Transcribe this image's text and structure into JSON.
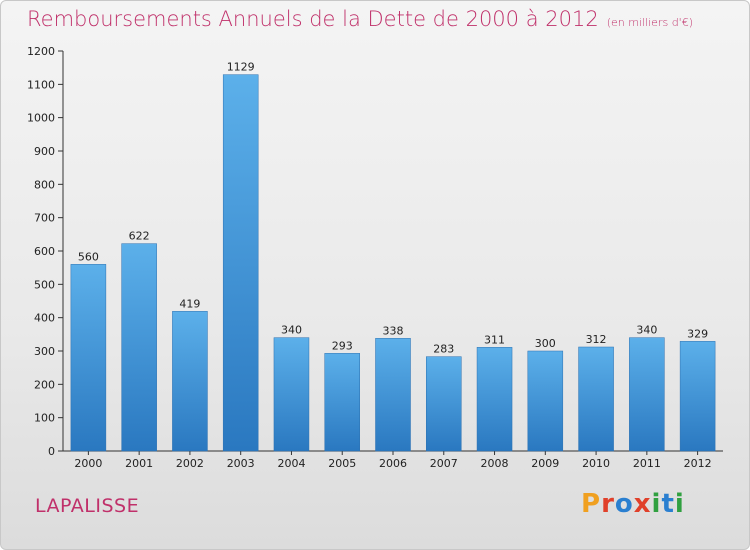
{
  "header": {
    "title": "Remboursements Annuels de la Dette de 2000 à 2012",
    "unit": "(en milliers d'€)"
  },
  "footer": {
    "commune": "LAPALISSE",
    "logo_text": "Proxiti",
    "logo_colors": [
      "#f0a020",
      "#e0402a",
      "#2a7fd0",
      "#e0402a",
      "#30a040",
      "#2a7fd0",
      "#30a040"
    ]
  },
  "chart_data": {
    "type": "bar",
    "categories": [
      "2000",
      "2001",
      "2002",
      "2003",
      "2004",
      "2005",
      "2006",
      "2007",
      "2008",
      "2009",
      "2010",
      "2011",
      "2012"
    ],
    "values": [
      560,
      622,
      419,
      1129,
      340,
      293,
      338,
      283,
      311,
      300,
      312,
      340,
      329
    ],
    "ylim": [
      0,
      1200
    ],
    "yticks": [
      0,
      100,
      200,
      300,
      400,
      500,
      600,
      700,
      800,
      900,
      1000,
      1100,
      1200
    ],
    "bar_color": "#3a8fd6",
    "data_labels": true,
    "grid": false
  }
}
